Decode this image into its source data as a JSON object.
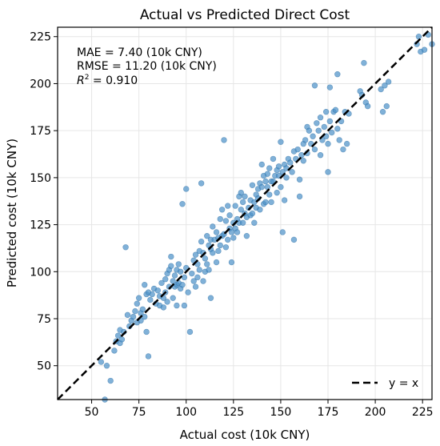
{
  "chart_data": {
    "type": "scatter",
    "title": "Actual vs Predicted Direct Cost",
    "xlabel": "Actual cost (10k CNY)",
    "ylabel": "Predicted cost (10k CNY)",
    "xlim": [
      32,
      230
    ],
    "ylim": [
      32,
      230
    ],
    "xticks": [
      50,
      75,
      100,
      125,
      150,
      175,
      200,
      225
    ],
    "yticks": [
      50,
      75,
      100,
      125,
      150,
      175,
      200,
      225
    ],
    "grid": true,
    "legend_position": "bottom-right",
    "annotations": [
      "MAE = 7.40 (10k CNY)",
      "RMSE = 11.20 (10k CNY)"
    ],
    "r2_annotation": {
      "symbol": "R",
      "superscript": "2",
      "rest": " = 0.910"
    },
    "reference_line": {
      "label": "y = x",
      "style": "dashed",
      "color": "#000000"
    },
    "point_color": "#4a90c8",
    "points": [
      [
        55,
        52
      ],
      [
        57,
        32
      ],
      [
        58,
        50
      ],
      [
        60,
        42
      ],
      [
        62,
        58
      ],
      [
        63,
        63
      ],
      [
        64,
        66
      ],
      [
        65,
        62
      ],
      [
        65,
        69
      ],
      [
        66,
        64
      ],
      [
        67,
        68
      ],
      [
        68,
        113
      ],
      [
        69,
        77
      ],
      [
        70,
        71
      ],
      [
        71,
        74
      ],
      [
        72,
        76
      ],
      [
        73,
        79
      ],
      [
        74,
        73
      ],
      [
        74,
        83
      ],
      [
        75,
        86
      ],
      [
        76,
        78
      ],
      [
        76,
        74
      ],
      [
        77,
        80
      ],
      [
        78,
        93
      ],
      [
        78,
        76
      ],
      [
        79,
        88
      ],
      [
        79,
        68
      ],
      [
        80,
        89
      ],
      [
        80,
        55
      ],
      [
        81,
        85
      ],
      [
        82,
        88
      ],
      [
        83,
        91
      ],
      [
        84,
        83
      ],
      [
        85,
        90
      ],
      [
        86,
        82
      ],
      [
        86,
        87
      ],
      [
        87,
        94
      ],
      [
        88,
        86
      ],
      [
        88,
        81
      ],
      [
        89,
        96
      ],
      [
        89,
        89
      ],
      [
        90,
        99
      ],
      [
        90,
        84
      ],
      [
        91,
        101
      ],
      [
        91,
        92
      ],
      [
        92,
        108
      ],
      [
        92,
        103
      ],
      [
        93,
        95
      ],
      [
        93,
        86
      ],
      [
        94,
        98
      ],
      [
        94,
        92
      ],
      [
        95,
        101
      ],
      [
        95,
        93
      ],
      [
        95,
        82
      ],
      [
        96,
        94
      ],
      [
        96,
        104
      ],
      [
        97,
        100
      ],
      [
        97,
        91
      ],
      [
        98,
        93
      ],
      [
        98,
        136
      ],
      [
        99,
        97
      ],
      [
        99,
        82
      ],
      [
        100,
        144
      ],
      [
        100,
        102
      ],
      [
        101,
        89
      ],
      [
        102,
        68
      ],
      [
        103,
        99
      ],
      [
        104,
        106
      ],
      [
        104,
        95
      ],
      [
        105,
        109
      ],
      [
        105,
        92
      ],
      [
        106,
        104
      ],
      [
        106,
        97
      ],
      [
        107,
        111
      ],
      [
        107,
        101
      ],
      [
        108,
        147
      ],
      [
        108,
        116
      ],
      [
        109,
        110
      ],
      [
        109,
        95
      ],
      [
        110,
        107
      ],
      [
        110,
        100
      ],
      [
        111,
        119
      ],
      [
        111,
        104
      ],
      [
        112,
        114
      ],
      [
        112,
        101
      ],
      [
        113,
        117
      ],
      [
        113,
        112
      ],
      [
        113,
        86
      ],
      [
        114,
        110
      ],
      [
        114,
        124
      ],
      [
        115,
        117
      ],
      [
        116,
        105
      ],
      [
        116,
        121
      ],
      [
        117,
        111
      ],
      [
        117,
        118
      ],
      [
        118,
        128
      ],
      [
        118,
        114
      ],
      [
        119,
        133
      ],
      [
        119,
        119
      ],
      [
        120,
        170
      ],
      [
        120,
        120
      ],
      [
        121,
        113
      ],
      [
        121,
        127
      ],
      [
        122,
        135
      ],
      [
        122,
        117
      ],
      [
        123,
        123
      ],
      [
        123,
        130
      ],
      [
        124,
        105
      ],
      [
        124,
        121
      ],
      [
        125,
        126
      ],
      [
        125,
        118
      ],
      [
        126,
        123
      ],
      [
        126,
        135
      ],
      [
        127,
        128
      ],
      [
        127,
        121
      ],
      [
        128,
        140
      ],
      [
        128,
        126
      ],
      [
        129,
        133
      ],
      [
        129,
        142
      ],
      [
        130,
        126
      ],
      [
        130,
        137
      ],
      [
        131,
        140
      ],
      [
        131,
        131
      ],
      [
        132,
        129
      ],
      [
        132,
        119
      ],
      [
        133,
        134
      ],
      [
        134,
        138
      ],
      [
        134,
        130
      ],
      [
        135,
        146
      ],
      [
        135,
        131
      ],
      [
        136,
        137
      ],
      [
        136,
        126
      ],
      [
        137,
        141
      ],
      [
        137,
        134
      ],
      [
        138,
        144
      ],
      [
        138,
        139
      ],
      [
        139,
        147
      ],
      [
        139,
        133
      ],
      [
        140,
        157
      ],
      [
        140,
        145
      ],
      [
        141,
        136
      ],
      [
        141,
        151
      ],
      [
        142,
        148
      ],
      [
        142,
        137
      ],
      [
        143,
        152
      ],
      [
        143,
        145
      ],
      [
        144,
        141
      ],
      [
        144,
        155
      ],
      [
        145,
        148
      ],
      [
        145,
        137
      ],
      [
        146,
        160
      ],
      [
        146,
        148
      ],
      [
        147,
        151
      ],
      [
        148,
        154
      ],
      [
        148,
        142
      ],
      [
        149,
        156
      ],
      [
        149,
        151
      ],
      [
        150,
        145
      ],
      [
        150,
        169
      ],
      [
        151,
        153
      ],
      [
        151,
        121
      ],
      [
        152,
        157
      ],
      [
        152,
        138
      ],
      [
        153,
        150
      ],
      [
        153,
        155
      ],
      [
        154,
        160
      ],
      [
        155,
        158
      ],
      [
        156,
        153
      ],
      [
        157,
        164
      ],
      [
        157,
        117
      ],
      [
        158,
        160
      ],
      [
        159,
        165
      ],
      [
        160,
        140
      ],
      [
        160,
        149
      ],
      [
        161,
        162
      ],
      [
        162,
        168
      ],
      [
        162,
        159
      ],
      [
        163,
        170
      ],
      [
        164,
        177
      ],
      [
        164,
        163
      ],
      [
        165,
        175
      ],
      [
        166,
        168
      ],
      [
        167,
        172
      ],
      [
        168,
        199
      ],
      [
        168,
        165
      ],
      [
        169,
        179
      ],
      [
        170,
        175
      ],
      [
        171,
        182
      ],
      [
        171,
        162
      ],
      [
        172,
        170
      ],
      [
        173,
        177
      ],
      [
        174,
        185
      ],
      [
        174,
        172
      ],
      [
        175,
        168
      ],
      [
        175,
        153
      ],
      [
        176,
        180
      ],
      [
        176,
        198
      ],
      [
        177,
        174
      ],
      [
        178,
        185
      ],
      [
        179,
        186
      ],
      [
        180,
        176
      ],
      [
        180,
        205
      ],
      [
        181,
        170
      ],
      [
        182,
        180
      ],
      [
        183,
        165
      ],
      [
        184,
        185
      ],
      [
        185,
        168
      ],
      [
        186,
        184
      ],
      [
        192,
        196
      ],
      [
        193,
        194
      ],
      [
        194,
        211
      ],
      [
        195,
        190
      ],
      [
        196,
        188
      ],
      [
        203,
        197
      ],
      [
        204,
        185
      ],
      [
        205,
        199
      ],
      [
        206,
        188
      ],
      [
        207,
        201
      ],
      [
        222,
        221
      ],
      [
        223,
        225
      ],
      [
        224,
        217
      ],
      [
        226,
        218
      ],
      [
        228,
        226
      ],
      [
        230,
        221
      ]
    ]
  }
}
